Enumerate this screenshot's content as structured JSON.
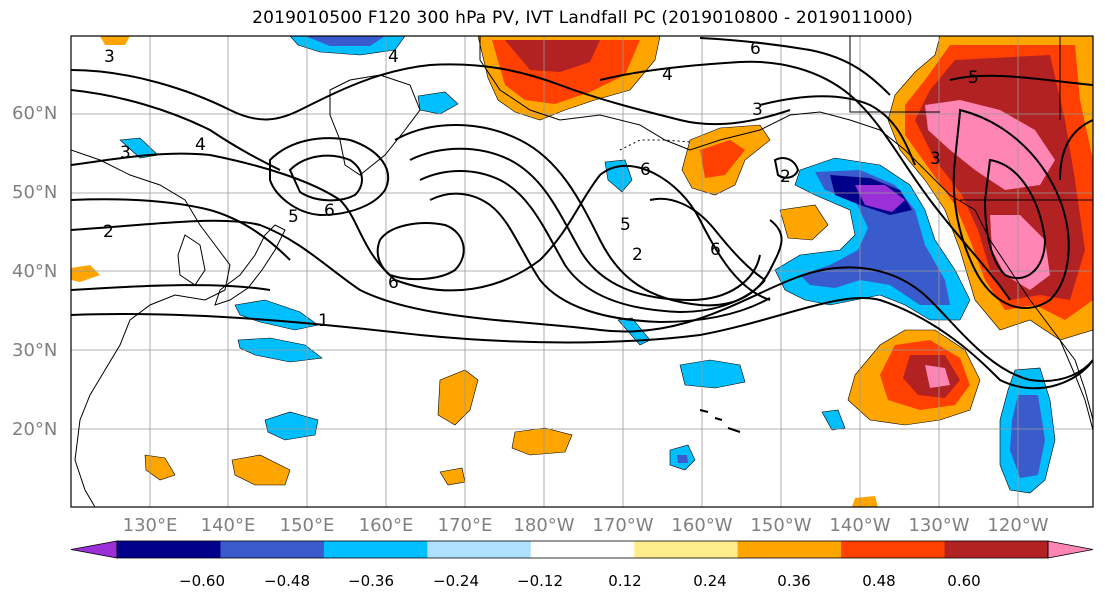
{
  "title": "2019010500 F120 300 hPa PV, IVT Landfall PC (2019010800 - 2019011000)",
  "lat_labels": [
    "60°N",
    "50°N",
    "40°N",
    "30°N",
    "20°N"
  ],
  "lon_labels": [
    "130°E",
    "140°E",
    "150°E",
    "160°E",
    "170°E",
    "180°W",
    "170°W",
    "160°W",
    "150°W",
    "140°W",
    "130°W",
    "120°W"
  ],
  "contour_labels": [
    "3",
    "4",
    "6",
    "4",
    "5",
    "3",
    "6",
    "5",
    "6",
    "4",
    "3",
    "2",
    "5",
    "2",
    "6",
    "2",
    "6",
    "1",
    "3"
  ],
  "colorbar": {
    "colors": [
      "#9b30d9",
      "#00008b",
      "#3a5bcc",
      "#00bfff",
      "#b0e0ff",
      "#ffffff",
      "#ffec8b",
      "#ffa500",
      "#ff4000",
      "#b22222",
      "#ff85b5"
    ],
    "tick_labels": [
      "−0.60",
      "−0.48",
      "−0.36",
      "−0.24",
      "−0.12",
      "0.12",
      "0.24",
      "0.36",
      "0.48",
      "0.60"
    ]
  }
}
